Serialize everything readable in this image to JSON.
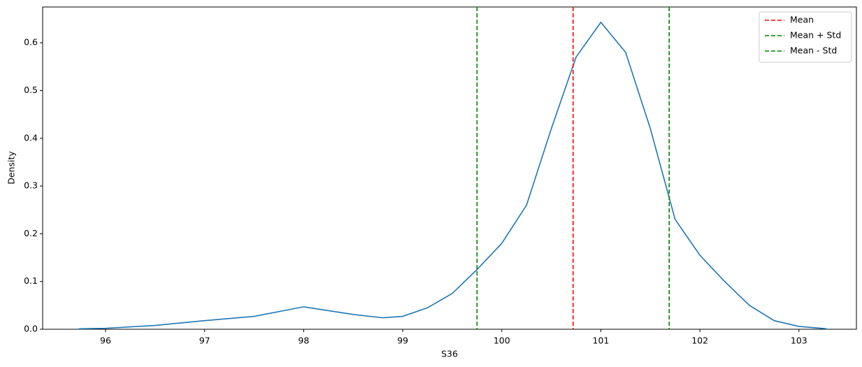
{
  "chart_data": {
    "type": "line",
    "xlabel": "S36",
    "ylabel": "Density",
    "xlim": [
      95.365,
      103.58
    ],
    "ylim": [
      0,
      0.675
    ],
    "xticks": [
      96,
      97,
      98,
      99,
      100,
      101,
      102,
      103
    ],
    "yticks": [
      {
        "value": 0,
        "label": "0.0"
      },
      {
        "value": 0.1,
        "label": "0.1"
      },
      {
        "value": 0.2,
        "label": "0.2"
      },
      {
        "value": 0.3,
        "label": "0.3"
      },
      {
        "value": 0.4,
        "label": "0.4"
      },
      {
        "value": 0.5,
        "label": "0.5"
      },
      {
        "value": 0.6,
        "label": "0.6"
      }
    ],
    "series": [
      {
        "color": "#1f77b4",
        "x": [
          95.73,
          96.0,
          96.5,
          97.0,
          97.5,
          98.0,
          98.5,
          98.8,
          99.0,
          99.25,
          99.5,
          99.75,
          100.0,
          100.25,
          100.5,
          100.75,
          101.0,
          101.25,
          101.5,
          101.75,
          102.0,
          102.25,
          102.5,
          102.75,
          103.0,
          103.28
        ],
        "values": [
          0.001,
          0.002,
          0.008,
          0.018,
          0.027,
          0.047,
          0.031,
          0.024,
          0.027,
          0.045,
          0.075,
          0.125,
          0.18,
          0.26,
          0.42,
          0.57,
          0.643,
          0.58,
          0.42,
          0.23,
          0.155,
          0.1,
          0.05,
          0.018,
          0.006,
          0.001
        ]
      }
    ],
    "vlines": [
      {
        "name": "Mean",
        "color": "#ff0000",
        "x": 100.72
      },
      {
        "name": "Mean + Std",
        "color": "#008000",
        "x": 101.69
      },
      {
        "name": "Mean - Std",
        "color": "#008000",
        "x": 99.75
      }
    ],
    "legend": "upper right"
  }
}
